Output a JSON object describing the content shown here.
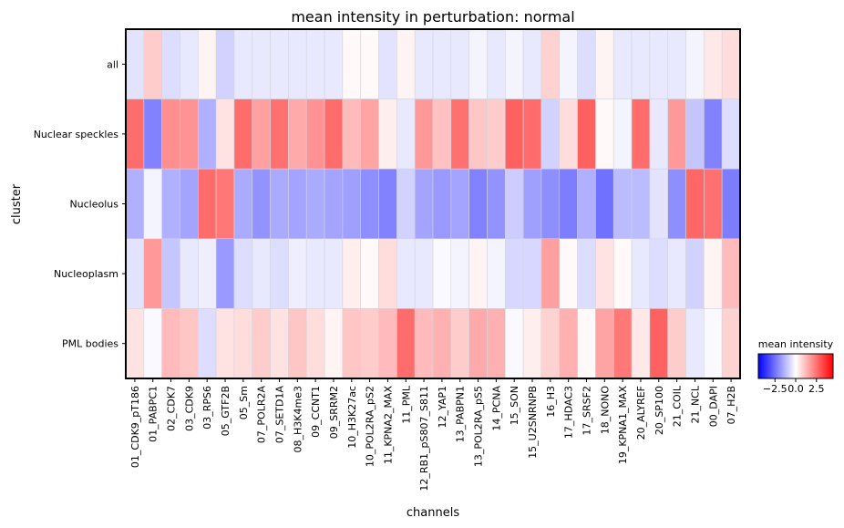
{
  "chart_data": {
    "type": "heatmap",
    "title": "mean intensity in perturbation: normal",
    "xlabel": "channels",
    "ylabel": "cluster",
    "rows": [
      "all",
      "Nuclear speckles",
      "Nucleolus",
      "Nucleoplasm",
      "PML bodies"
    ],
    "columns": [
      "01_CDK9_pT186",
      "01_PABPC1",
      "02_CDK7",
      "03_CDK9",
      "03_RPS6",
      "05_GTF2B",
      "05_Sm",
      "07_POLR2A",
      "07_SETD1A",
      "08_H3K4me3",
      "09_CCNT1",
      "09_SRRM2",
      "10_H3K27ac",
      "10_POL2RA_pS2",
      "11_KPNA2_MAX",
      "11_PML",
      "12_RB1_pS807_S811",
      "12_YAP1",
      "13_PABPN1",
      "13_POL2RA_pS5",
      "14_PCNA",
      "15_SON",
      "15_U2SNRNPB",
      "16_H3",
      "17_HDAC3",
      "17_SRSF2",
      "18_NONO",
      "19_KPNA1_MAX",
      "20_ALYREF",
      "20_SP100",
      "21_COIL",
      "21_NCL",
      "00_DAPI",
      "07_H2B"
    ],
    "values": [
      [
        -0.5,
        0.9,
        -0.6,
        -0.4,
        0.2,
        -0.8,
        -0.4,
        -0.4,
        -0.4,
        -0.4,
        -0.4,
        -0.4,
        0.1,
        0.1,
        -0.5,
        0.2,
        -0.4,
        -0.4,
        -0.4,
        -0.2,
        -0.4,
        -0.2,
        -0.4,
        0.8,
        -0.2,
        -0.6,
        0.2,
        -0.4,
        -0.4,
        -0.4,
        -0.4,
        -0.2,
        0.4,
        0.6
      ],
      [
        2.6,
        -2.2,
        2.0,
        1.9,
        -1.4,
        0.5,
        2.6,
        1.7,
        2.5,
        1.5,
        1.9,
        2.6,
        1.2,
        1.6,
        0.3,
        -0.4,
        1.8,
        1.1,
        2.5,
        1.0,
        0.9,
        2.8,
        2.6,
        -0.8,
        0.6,
        2.8,
        0.1,
        -0.2,
        2.6,
        -0.4,
        1.8,
        -1.0,
        -2.2,
        -0.6
      ],
      [
        -1.4,
        -0.2,
        -1.4,
        -1.6,
        2.6,
        2.4,
        -1.5,
        -1.9,
        -1.5,
        -1.6,
        -1.5,
        -1.6,
        -1.7,
        -2.0,
        -2.2,
        -0.8,
        -1.6,
        -1.8,
        -1.6,
        -2.2,
        -1.9,
        -0.9,
        -1.7,
        -2.0,
        -2.3,
        -1.4,
        -2.5,
        -1.2,
        -1.2,
        -0.5,
        -2.0,
        2.7,
        2.5,
        -2.3
      ],
      [
        -0.5,
        1.8,
        -1.0,
        -0.4,
        -0.3,
        -1.8,
        -0.6,
        -0.4,
        -0.6,
        -0.3,
        -0.4,
        -0.4,
        0.3,
        0.1,
        0.6,
        -0.4,
        -0.4,
        -0.1,
        -0.2,
        0.2,
        -0.2,
        -0.7,
        -0.7,
        1.7,
        0.1,
        -0.6,
        0.5,
        0.1,
        -0.4,
        -0.6,
        -0.4,
        -0.8,
        0.2,
        1.2
      ],
      [
        0.5,
        -0.1,
        1.2,
        1.0,
        -0.6,
        0.5,
        0.6,
        0.9,
        0.5,
        1.0,
        0.6,
        0.2,
        1.0,
        0.9,
        1.2,
        2.6,
        1.2,
        1.4,
        0.9,
        1.5,
        1.4,
        -0.1,
        0.3,
        0.8,
        1.4,
        0.1,
        1.6,
        2.4,
        0.4,
        2.8,
        0.9,
        -0.4,
        -0.1,
        0.8
      ]
    ],
    "colormap": "bwr",
    "vmin": -4.5,
    "vmax": 4.5,
    "colorbar": {
      "title": "mean intensity",
      "ticks": [
        -2.5,
        0.0,
        2.5
      ],
      "tick_labels": [
        "−2.5",
        "0.0",
        "2.5"
      ]
    },
    "grid": false,
    "legend_position": "bottom-right"
  }
}
